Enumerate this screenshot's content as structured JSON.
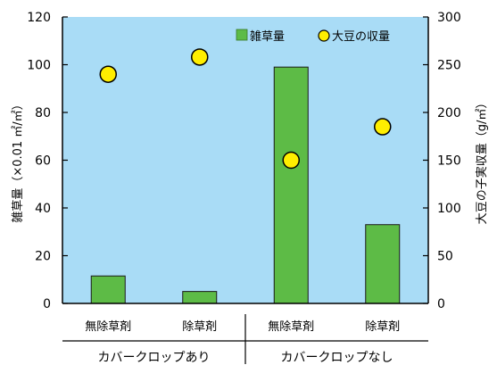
{
  "chart_data": {
    "type": "bar",
    "title": "",
    "groups": [
      {
        "label": "カバークロップあり",
        "categories": [
          "無除草剤",
          "除草剤"
        ]
      },
      {
        "label": "カバークロップなし",
        "categories": [
          "無除草剤",
          "除草剤"
        ]
      }
    ],
    "categories": [
      "無除草剤",
      "除草剤",
      "無除草剤",
      "除草剤"
    ],
    "series": [
      {
        "name": "雑草量",
        "type": "bar",
        "axis": "left",
        "values": [
          11.5,
          5,
          99,
          33
        ],
        "color": "#5dbb46"
      },
      {
        "name": "大豆の収量",
        "type": "scatter",
        "axis": "right",
        "values": [
          240,
          258,
          150,
          185
        ],
        "color": "#ffee00"
      }
    ],
    "y_left": {
      "label": "雑草量（×0.01 ㎡/㎡）",
      "ylim": [
        0,
        120
      ],
      "ticks": [
        "0",
        "20",
        "40",
        "60",
        "80",
        "100",
        "120"
      ]
    },
    "y_right": {
      "label": "大豆の子実収量（g/㎡）",
      "ylim": [
        0,
        300
      ],
      "ticks": [
        "0",
        "50",
        "100",
        "150",
        "200",
        "250",
        "300"
      ]
    },
    "plot_background": "#a9dcf6",
    "legend_position": "top-right"
  }
}
